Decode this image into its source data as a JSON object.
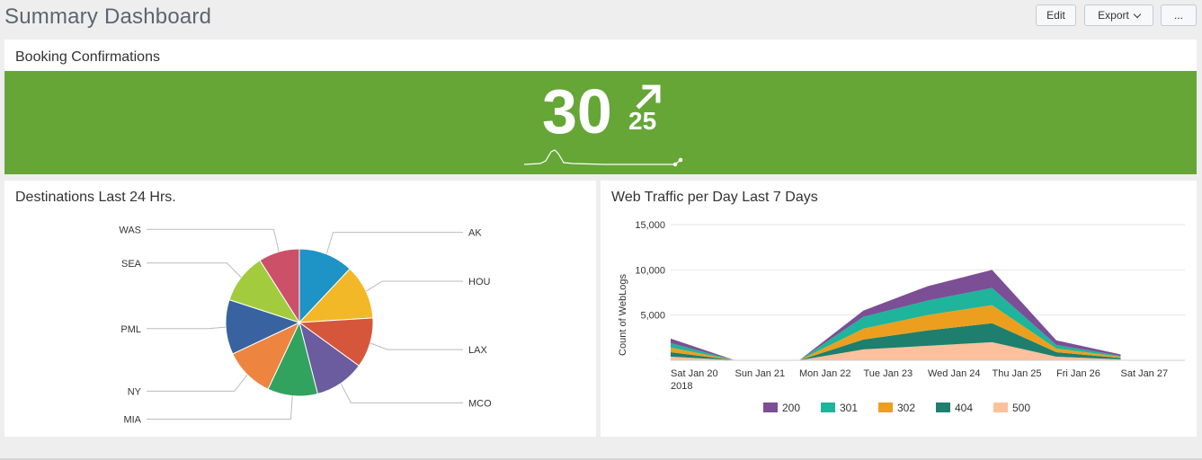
{
  "header": {
    "title": "Summary Dashboard",
    "edit_label": "Edit",
    "export_label": "Export",
    "more_label": "..."
  },
  "booking": {
    "title": "Booking Confirmations",
    "value": "30",
    "delta": "25",
    "trend_icon": "arrow-up-right-icon",
    "band_color": "#65a637"
  },
  "destinations": {
    "title": "Destinations Last 24 Hrs."
  },
  "traffic": {
    "title": "Web Traffic per Day Last 7 Days"
  },
  "chart_data": [
    {
      "type": "pie",
      "title": "",
      "labels": [
        "AK",
        "HOU",
        "LAX",
        "MCO",
        "MIA",
        "NY",
        "PML",
        "SEA",
        "WAS"
      ],
      "values": [
        12,
        12,
        11,
        11,
        11,
        11,
        12,
        11,
        9
      ],
      "colors": [
        "#1e93c6",
        "#f2b827",
        "#d6563c",
        "#6a5c9e",
        "#31a35f",
        "#ed8440",
        "#3863a0",
        "#a2cc3e",
        "#cc5068"
      ]
    },
    {
      "type": "area",
      "stacked": true,
      "title": "",
      "xlabel": "",
      "ylabel": "Count of WebLogs",
      "x": [
        "Sat Jan 20\n2018",
        "Sun Jan 21",
        "Mon Jan 22",
        "Tue Jan 23",
        "Wed Jan 24",
        "Thu Jan 25",
        "Fri Jan 26",
        "Sat Jan 27"
      ],
      "ylim": [
        0,
        15000
      ],
      "yticks": [
        "5,000",
        "10,000",
        "15,000"
      ],
      "grid": true,
      "legend_position": "bottom",
      "series": [
        {
          "name": "500",
          "color": "#fcc09c",
          "values": [
            400,
            0,
            0,
            1200,
            1600,
            2000,
            400,
            100
          ]
        },
        {
          "name": "404",
          "color": "#1e7f6e",
          "values": [
            500,
            0,
            0,
            1100,
            1700,
            2100,
            500,
            150
          ]
        },
        {
          "name": "302",
          "color": "#ec9f1e",
          "values": [
            500,
            0,
            0,
            1200,
            1700,
            2000,
            400,
            150
          ]
        },
        {
          "name": "301",
          "color": "#1fb49c",
          "values": [
            500,
            0,
            0,
            1300,
            1600,
            1900,
            400,
            100
          ]
        },
        {
          "name": "200",
          "color": "#7c4e96",
          "values": [
            500,
            0,
            0,
            700,
            1600,
            2000,
            500,
            150
          ]
        }
      ]
    }
  ]
}
